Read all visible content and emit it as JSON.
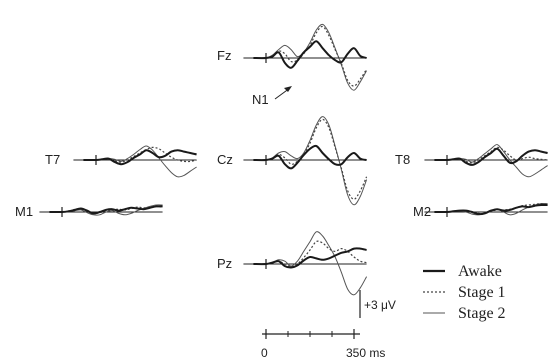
{
  "chart_data": {
    "type": "line",
    "title": "",
    "time_axis": {
      "start_label": "0",
      "end_label": "350 ms",
      "start_ms": 0,
      "end_ms": 350
    },
    "scale_bar": {
      "label": "+3 μV",
      "value_uv": 3
    },
    "annotation": {
      "text": "N1",
      "channel": "Fz"
    },
    "legend": {
      "placement": "bottom-right",
      "entries": [
        {
          "name": "Awake",
          "style": "solid-thick"
        },
        {
          "name": "Stage 1",
          "style": "dotted"
        },
        {
          "name": "Stage 2",
          "style": "solid-thin"
        }
      ]
    },
    "series_styles": {
      "Awake": {
        "color": "#1a1a1a",
        "dash": ""
      },
      "Stage 1": {
        "color": "#444444",
        "dash": "2,2"
      },
      "Stage 2": {
        "color": "#555555",
        "dash": ""
      }
    },
    "t_ms": [
      -50,
      0,
      25,
      50,
      75,
      100,
      125,
      150,
      175,
      200,
      225,
      250,
      275,
      300,
      325,
      350,
      375,
      400
    ],
    "channels": [
      {
        "name": "Fz",
        "series": [
          {
            "name": "Awake",
            "values": [
              0,
              0,
              0.2,
              0.8,
              -0.7,
              -1.4,
              -0.4,
              0.8,
              1.6,
              2.4,
              1.4,
              0.4,
              -0.3,
              -0.6,
              0.6,
              1.4,
              0.3,
              0
            ]
          },
          {
            "name": "Stage 1",
            "values": [
              0,
              0,
              0.3,
              1.0,
              0.6,
              -0.5,
              -0.3,
              0.6,
              1.8,
              3.6,
              4.5,
              3.2,
              1.2,
              -0.8,
              -3.2,
              -4.0,
              -3.0,
              -1.6
            ]
          },
          {
            "name": "Stage 2",
            "values": [
              0,
              0,
              0.4,
              1.2,
              1.8,
              1.2,
              0.2,
              0.8,
              2.2,
              4.0,
              4.8,
              3.6,
              1.4,
              -1.0,
              -3.6,
              -4.6,
              -3.4,
              -1.8
            ]
          }
        ]
      },
      {
        "name": "Cz",
        "series": [
          {
            "name": "Awake",
            "values": [
              0,
              0,
              0.2,
              0.6,
              -0.6,
              -1.2,
              -0.4,
              0.7,
              1.6,
              2.0,
              1.0,
              0.1,
              -0.6,
              -0.6,
              0.4,
              1.0,
              0.2,
              0
            ]
          },
          {
            "name": "Stage 1",
            "values": [
              0,
              0,
              0.2,
              0.8,
              0.3,
              -0.6,
              -0.2,
              0.8,
              2.4,
              4.6,
              5.8,
              4.6,
              1.8,
              -1.2,
              -4.4,
              -5.6,
              -4.4,
              -2.4
            ]
          },
          {
            "name": "Stage 2",
            "values": [
              0,
              0,
              0.3,
              1.0,
              1.2,
              0.6,
              0.2,
              1.0,
              2.8,
              5.0,
              6.2,
              5.0,
              2.0,
              -1.4,
              -5.0,
              -6.4,
              -5.2,
              -2.8
            ]
          }
        ]
      },
      {
        "name": "Pz",
        "series": [
          {
            "name": "Awake",
            "values": [
              0,
              0,
              0.2,
              0.4,
              -0.3,
              -0.5,
              -0.2,
              0.5,
              1.0,
              0.8,
              0.6,
              0.8,
              1.2,
              1.6,
              1.8,
              2.2,
              2.2,
              2.0
            ]
          },
          {
            "name": "Stage 1",
            "values": [
              0,
              0,
              0.2,
              0.4,
              0.0,
              -0.4,
              0.0,
              0.9,
              2.0,
              3.2,
              3.0,
              2.2,
              1.8,
              2.2,
              1.8,
              1.0,
              0.4,
              0.2
            ]
          },
          {
            "name": "Stage 2",
            "values": [
              0,
              0,
              0.2,
              0.6,
              0.4,
              -0.3,
              0.4,
              1.8,
              3.2,
              4.6,
              4.0,
              2.6,
              1.0,
              -1.2,
              -3.6,
              -4.4,
              -3.4,
              -1.8
            ]
          }
        ]
      },
      {
        "name": "T7",
        "series": [
          {
            "name": "Awake",
            "values": [
              0,
              0,
              0.1,
              0.2,
              -0.3,
              -0.6,
              -0.3,
              0.3,
              0.8,
              1.4,
              1.0,
              0.4,
              0.6,
              1.2,
              1.4,
              1.2,
              1.0,
              0.8
            ]
          },
          {
            "name": "Stage 1",
            "values": [
              0,
              0,
              0.1,
              0.1,
              -0.1,
              -0.3,
              0.0,
              0.5,
              1.0,
              1.5,
              1.8,
              1.6,
              1.0,
              0.4,
              0.0,
              -0.2,
              -0.2,
              0.0
            ]
          },
          {
            "name": "Stage 2",
            "values": [
              0,
              0,
              0.1,
              0.2,
              0.1,
              -0.2,
              0.2,
              0.8,
              1.5,
              2.0,
              1.4,
              0.3,
              -0.8,
              -1.8,
              -2.4,
              -2.2,
              -1.6,
              -1.0
            ]
          }
        ]
      },
      {
        "name": "T8",
        "series": [
          {
            "name": "Awake",
            "values": [
              0,
              0,
              0.1,
              0.2,
              -0.4,
              -0.7,
              -0.3,
              0.4,
              1.0,
              1.6,
              0.6,
              -0.4,
              -0.2,
              0.6,
              1.2,
              1.4,
              1.2,
              1.0
            ]
          },
          {
            "name": "Stage 1",
            "values": [
              0,
              0,
              0.1,
              0.1,
              -0.2,
              -0.4,
              0.0,
              0.6,
              1.2,
              1.8,
              1.4,
              0.6,
              0.0,
              0.2,
              0.4,
              0.2,
              0.1,
              0.0
            ]
          },
          {
            "name": "Stage 2",
            "values": [
              0,
              0,
              0.1,
              0.2,
              0.1,
              -0.3,
              0.2,
              0.9,
              1.6,
              2.2,
              1.2,
              0.0,
              -1.0,
              -2.0,
              -2.4,
              -2.0,
              -1.4,
              -0.8
            ]
          }
        ]
      },
      {
        "name": "M1",
        "series": [
          {
            "name": "Awake",
            "values": [
              0,
              0,
              0.1,
              0.3,
              0.5,
              0.2,
              -0.2,
              0.0,
              0.3,
              0.4,
              0.2,
              0.4,
              0.6,
              0.5,
              0.4,
              0.6,
              0.8,
              0.8
            ]
          },
          {
            "name": "Stage 1",
            "values": [
              0,
              0,
              0.1,
              0.2,
              0.4,
              0.1,
              -0.2,
              -0.1,
              0.2,
              0.3,
              0.4,
              0.3,
              0.5,
              0.7,
              0.6,
              0.7,
              0.8,
              0.7
            ]
          },
          {
            "name": "Stage 2",
            "values": [
              0,
              0,
              0.1,
              0.2,
              0.3,
              -0.1,
              -0.4,
              -0.4,
              0.0,
              0.2,
              -0.2,
              -0.4,
              -0.2,
              0.2,
              0.5,
              0.8,
              1.0,
              1.0
            ]
          }
        ]
      },
      {
        "name": "M2",
        "series": [
          {
            "name": "Awake",
            "values": [
              0,
              0,
              0.1,
              0.2,
              0.2,
              0.0,
              -0.3,
              -0.2,
              0.2,
              0.4,
              0.2,
              0.3,
              0.6,
              0.8,
              0.7,
              0.9,
              1.0,
              1.0
            ]
          },
          {
            "name": "Stage 1",
            "values": [
              0,
              0,
              0.1,
              0.1,
              0.2,
              0.0,
              -0.2,
              -0.2,
              0.1,
              0.3,
              0.3,
              0.4,
              0.6,
              0.9,
              1.0,
              1.1,
              1.2,
              1.1
            ]
          },
          {
            "name": "Stage 2",
            "values": [
              0,
              0,
              0.1,
              0.1,
              0.0,
              -0.3,
              -0.4,
              -0.2,
              0.2,
              0.4,
              0.0,
              -0.4,
              -0.2,
              0.3,
              0.7,
              1.0,
              1.2,
              1.2
            ]
          }
        ]
      }
    ]
  }
}
